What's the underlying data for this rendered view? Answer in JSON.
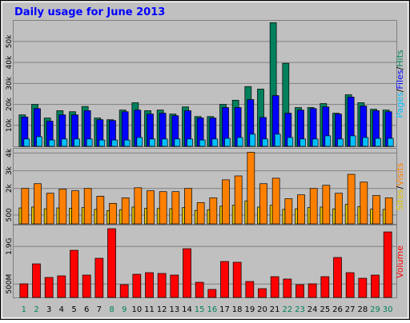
{
  "title": "Daily usage for June 2013",
  "chart_data": [
    {
      "type": "bar",
      "legend_separator": "/",
      "series": [
        {
          "name": "Hits",
          "color": "#00805c",
          "values": [
            15000,
            20000,
            13500,
            17000,
            16500,
            19000,
            13500,
            12700,
            17300,
            20800,
            17000,
            17300,
            15400,
            18800,
            14200,
            14200,
            20000,
            22000,
            28500,
            27300,
            59000,
            39600,
            18500,
            18500,
            20400,
            15800,
            24600,
            20800,
            17700,
            17300
          ]
        },
        {
          "name": "Files",
          "color": "#0000ff",
          "values": [
            14000,
            18000,
            12000,
            15000,
            15000,
            17000,
            12700,
            12300,
            16500,
            17300,
            15400,
            15800,
            14600,
            17000,
            13500,
            13500,
            18500,
            18500,
            22300,
            13800,
            24200,
            15800,
            17300,
            18000,
            18800,
            15400,
            23500,
            19200,
            17000,
            16500
          ]
        },
        {
          "name": "Pages",
          "color": "#00c0ff",
          "values": [
            3500,
            4600,
            3000,
            3500,
            3500,
            3500,
            3000,
            3000,
            3000,
            4200,
            3500,
            3500,
            3500,
            3500,
            3000,
            3500,
            3800,
            4200,
            5800,
            3500,
            5800,
            4200,
            3500,
            3500,
            5000,
            3500,
            5000,
            4200,
            3800,
            3800
          ]
        }
      ],
      "ylim": [
        0,
        59500
      ],
      "yticks": [
        {
          "value": 10000,
          "label": "10k"
        },
        {
          "value": 20000,
          "label": "20k"
        },
        {
          "value": 30000,
          "label": "30k"
        },
        {
          "value": 40000,
          "label": "40k"
        },
        {
          "value": 50000,
          "label": "50k"
        }
      ],
      "grid": true
    },
    {
      "type": "bar",
      "legend_separator": "/",
      "series": [
        {
          "name": "Visits",
          "color": "#ff8000",
          "values": [
            2000,
            2270,
            1730,
            1960,
            1870,
            2000,
            1560,
            1160,
            1470,
            2040,
            1870,
            1820,
            1820,
            2000,
            1200,
            1470,
            2490,
            2710,
            4040,
            2270,
            2580,
            1420,
            1640,
            2000,
            2180,
            1730,
            2800,
            2360,
            1600,
            1470
          ]
        },
        {
          "name": "Sites",
          "color": "#e0c000",
          "values": [
            900,
            950,
            850,
            900,
            880,
            920,
            820,
            750,
            800,
            950,
            880,
            870,
            860,
            920,
            760,
            800,
            1000,
            1050,
            1300,
            950,
            1050,
            820,
            850,
            920,
            950,
            850,
            1100,
            980,
            830,
            820
          ]
        }
      ],
      "ylim": [
        0,
        4200
      ],
      "yticks": [
        {
          "value": 500,
          "label": "500"
        },
        {
          "value": 2000,
          "label": "2k"
        },
        {
          "value": 3000,
          "label": "3k"
        },
        {
          "value": 4000,
          "label": "4k"
        }
      ],
      "grid": true
    },
    {
      "type": "bar",
      "categories": [
        "1",
        "2",
        "3",
        "4",
        "5",
        "6",
        "7",
        "8",
        "9",
        "10",
        "11",
        "12",
        "13",
        "14",
        "15",
        "16",
        "17",
        "18",
        "19",
        "20",
        "21",
        "22",
        "23",
        "24",
        "25",
        "26",
        "27",
        "28",
        "29",
        "30"
      ],
      "category_colors": [
        "#00805c",
        "#00805c",
        "#000000",
        "#000000",
        "#000000",
        "#000000",
        "#000000",
        "#00805c",
        "#00805c",
        "#000000",
        "#000000",
        "#000000",
        "#000000",
        "#000000",
        "#00805c",
        "#00805c",
        "#000000",
        "#000000",
        "#000000",
        "#000000",
        "#000000",
        "#00805c",
        "#00805c",
        "#000000",
        "#000000",
        "#000000",
        "#000000",
        "#000000",
        "#00805c",
        "#00805c"
      ],
      "series": [
        {
          "name": "Volume",
          "color": "#ff0000",
          "values": [
            506,
            1250,
            744,
            804,
            1756,
            833,
            1458,
            2560,
            476,
            863,
            923,
            893,
            833,
            1815,
            565,
            298,
            1339,
            1310,
            595,
            327,
            774,
            685,
            476,
            506,
            774,
            1488,
            923,
            714,
            833,
            2440
          ]
        }
      ],
      "ylim": [
        0,
        2650
      ],
      "yticks": [
        {
          "value": 500,
          "label": "500M"
        },
        {
          "value": 1900,
          "label": "1.9G"
        }
      ],
      "grid": true
    }
  ]
}
